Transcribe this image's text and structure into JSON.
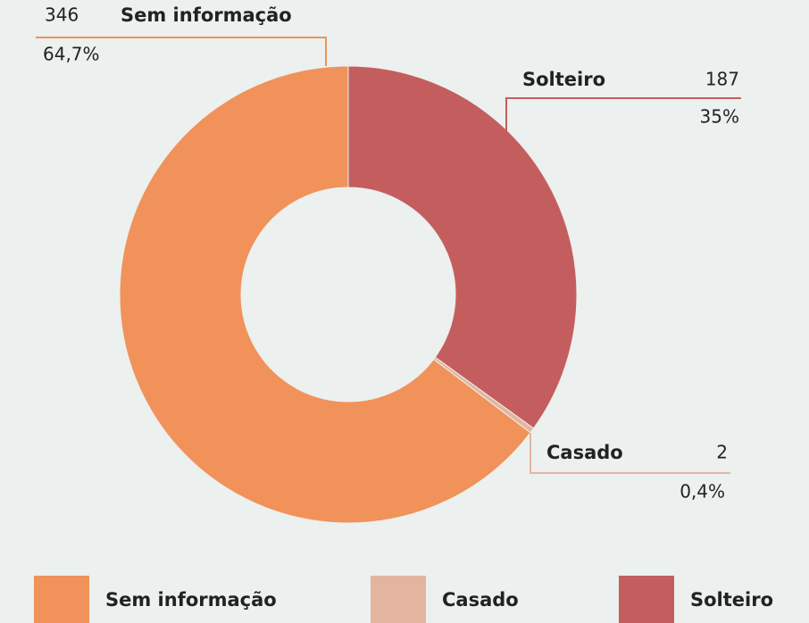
{
  "chart_data": {
    "type": "donut",
    "categories": [
      "Solteiro",
      "Casado",
      "Sem informação"
    ],
    "values": [
      187,
      2,
      346
    ],
    "percent_labels": [
      "35%",
      "0,4%",
      "64,7%"
    ],
    "colors": [
      "#c45e5e",
      "#e3b5a0",
      "#f0925a"
    ],
    "legend": "bottom"
  }
}
